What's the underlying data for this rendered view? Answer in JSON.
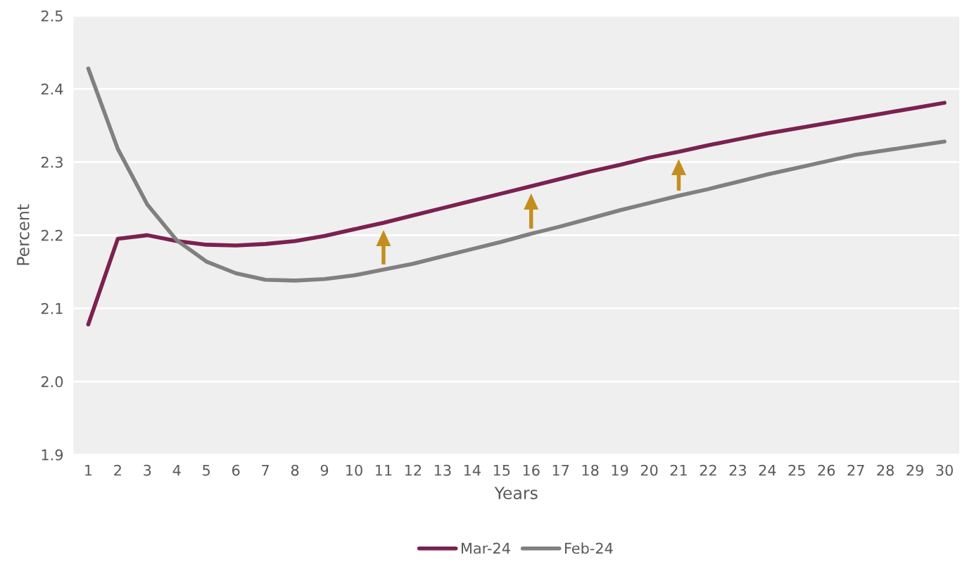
{
  "chart_data": {
    "type": "line",
    "xlabel": "Years",
    "ylabel": "Percent",
    "categories": [
      "1",
      "2",
      "3",
      "4",
      "5",
      "6",
      "7",
      "8",
      "9",
      "10",
      "11",
      "12",
      "13",
      "14",
      "15",
      "16",
      "17",
      "18",
      "19",
      "20",
      "21",
      "22",
      "23",
      "24",
      "25",
      "26",
      "27",
      "28",
      "29",
      "30"
    ],
    "series": [
      {
        "name": "Mar-24",
        "color": "#7b2150",
        "values": [
          2.078,
          2.195,
          2.2,
          2.192,
          2.187,
          2.186,
          2.188,
          2.192,
          2.199,
          2.208,
          2.217,
          2.227,
          2.237,
          2.247,
          2.257,
          2.267,
          2.277,
          2.287,
          2.296,
          2.306,
          2.314,
          2.323,
          2.331,
          2.339,
          2.346,
          2.353,
          2.36,
          2.367,
          2.374,
          2.381
        ]
      },
      {
        "name": "Feb-24",
        "color": "#808080",
        "values": [
          2.428,
          2.318,
          2.242,
          2.193,
          2.164,
          2.148,
          2.139,
          2.138,
          2.14,
          2.145,
          2.153,
          2.161,
          2.171,
          2.181,
          2.191,
          2.202,
          2.212,
          2.223,
          2.234,
          2.244,
          2.254,
          2.263,
          2.273,
          2.283,
          2.292,
          2.301,
          2.31,
          2.316,
          2.322,
          2.328
        ]
      }
    ],
    "ylim": [
      1.9,
      2.5
    ],
    "yticks": [
      {
        "value": 1.9,
        "label": "1.9"
      },
      {
        "value": 2.0,
        "label": "2.0"
      },
      {
        "value": 2.1,
        "label": "2.1"
      },
      {
        "value": 2.2,
        "label": "2.2"
      },
      {
        "value": 2.3,
        "label": "2.3"
      },
      {
        "value": 2.4,
        "label": "2.4"
      },
      {
        "value": 2.5,
        "label": "2.5"
      }
    ],
    "grid": "y",
    "legend": "bottom",
    "marker": "none",
    "line_style": "solid"
  }
}
